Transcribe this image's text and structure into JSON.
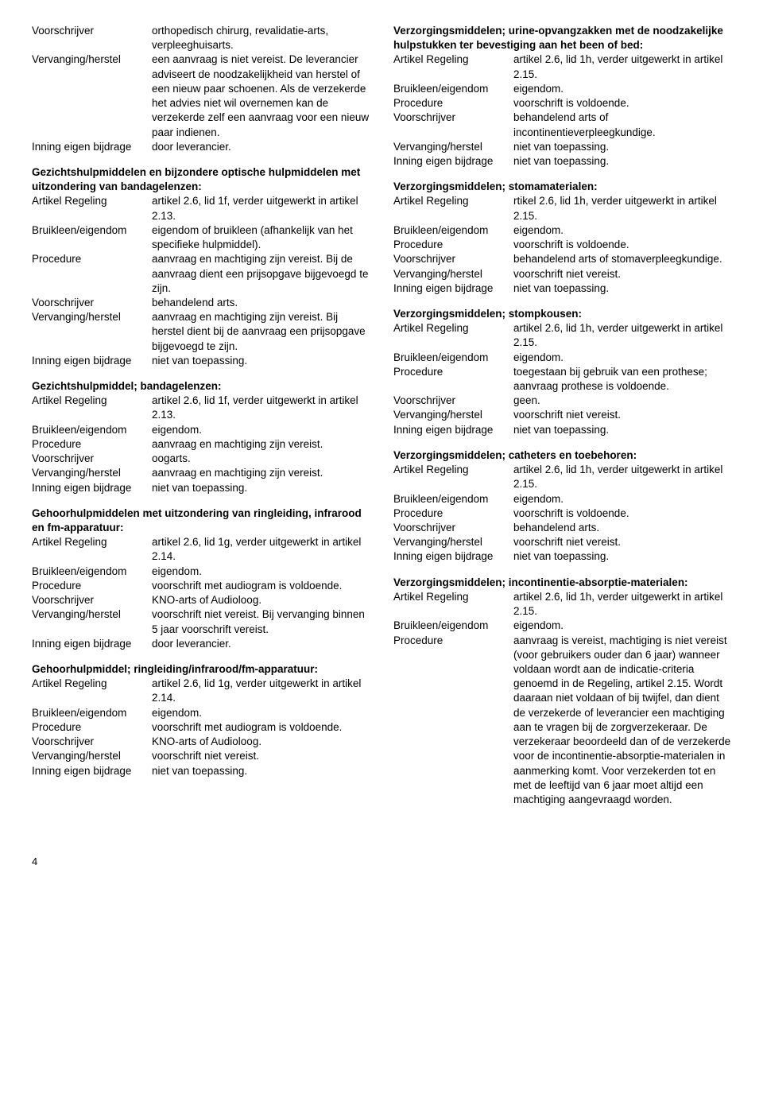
{
  "left": {
    "sec1": {
      "r1": {
        "l": "Voorschrijver",
        "v": "orthopedisch chirurg, revalidatie-arts, verpleeghuisarts."
      },
      "r2": {
        "l": "Vervanging/herstel",
        "v": "een aanvraag is niet vereist. De leverancier adviseert de noodzakelijkheid van herstel of een nieuw paar schoenen. Als de verzekerde het advies niet wil overnemen kan de verzekerde zelf een aanvraag voor een nieuw paar indienen."
      },
      "r3": {
        "l": "Inning eigen bijdrage",
        "v": "door leverancier."
      }
    },
    "sec2": {
      "title": "Gezichtshulpmiddelen en bijzondere optische hulpmiddelen met uitzondering van bandagelenzen:",
      "r1": {
        "l": "Artikel Regeling",
        "v": "artikel 2.6, lid 1f, verder uitgewerkt in artikel 2.13."
      },
      "r2": {
        "l": "Bruikleen/eigendom",
        "v": "eigendom of bruikleen (afhankelijk van het specifieke hulpmiddel)."
      },
      "r3": {
        "l": "Procedure",
        "v": "aanvraag en machtiging zijn vereist. Bij de aanvraag dient een prijsopgave bijgevoegd te zijn."
      },
      "r4": {
        "l": "Voorschrijver",
        "v": "behandelend arts."
      },
      "r5": {
        "l": "Vervanging/herstel",
        "v": "aanvraag en machtiging zijn vereist. Bij herstel dient bij de aanvraag een prijsopgave bijgevoegd te zijn."
      },
      "r6": {
        "l": "Inning eigen bijdrage",
        "v": "niet van toepassing."
      }
    },
    "sec3": {
      "title": "Gezichtshulpmiddel; bandagelenzen:",
      "r1": {
        "l": "Artikel Regeling",
        "v": "artikel 2.6, lid 1f, verder uitgewerkt in artikel 2.13."
      },
      "r2": {
        "l": "Bruikleen/eigendom",
        "v": "eigendom."
      },
      "r3": {
        "l": "Procedure",
        "v": "aanvraag en machtiging zijn vereist."
      },
      "r4": {
        "l": "Voorschrijver",
        "v": "oogarts."
      },
      "r5": {
        "l": "Vervanging/herstel",
        "v": "aanvraag en machtiging zijn vereist."
      },
      "r6": {
        "l": "Inning eigen bijdrage",
        "v": "niet van toepassing."
      }
    },
    "sec4": {
      "title": "Gehoorhulpmiddelen met uitzondering van ringleiding, infrarood en fm-apparatuur:",
      "r1": {
        "l": "Artikel Regeling",
        "v": "artikel 2.6, lid 1g, verder uitgewerkt in artikel 2.14."
      },
      "r2": {
        "l": "Bruikleen/eigendom",
        "v": "eigendom."
      },
      "r3": {
        "l": "Procedure",
        "v": "voorschrift met audiogram is voldoende."
      },
      "r4": {
        "l": "Voorschrijver",
        "v": "KNO-arts of Audioloog."
      },
      "r5": {
        "l": "Vervanging/herstel",
        "v": "voorschrift niet vereist. Bij vervanging binnen 5 jaar voorschrift vereist."
      },
      "r6": {
        "l": "Inning eigen bijdrage",
        "v": "door leverancier."
      }
    },
    "sec5": {
      "title": "Gehoorhulpmiddel; ringleiding/infrarood/fm-apparatuur:",
      "r1": {
        "l": "Artikel Regeling",
        "v": "artikel 2.6, lid 1g, verder uitgewerkt in artikel 2.14."
      },
      "r2": {
        "l": "Bruikleen/eigendom",
        "v": "eigendom."
      },
      "r3": {
        "l": "Procedure",
        "v": "voorschrift met audiogram is voldoende."
      },
      "r4": {
        "l": "Voorschrijver",
        "v": "KNO-arts of Audioloog."
      },
      "r5": {
        "l": "Vervanging/herstel",
        "v": "voorschrift niet vereist."
      },
      "r6": {
        "l": "Inning eigen bijdrage",
        "v": "niet van toepassing."
      }
    }
  },
  "right": {
    "sec1": {
      "title": "Verzorgingsmiddelen; urine-opvangzakken met de noodzakelijke hulpstukken ter bevestiging aan het been of bed:",
      "r1": {
        "l": "Artikel Regeling",
        "v": "artikel 2.6, lid 1h, verder uitgewerkt in artikel 2.15."
      },
      "r2": {
        "l": "Bruikleen/eigendom",
        "v": "eigendom."
      },
      "r3": {
        "l": "Procedure",
        "v": "voorschrift is voldoende."
      },
      "r4": {
        "l": "Voorschrijver",
        "v": "behandelend arts of incontinentieverpleegkundige."
      },
      "r5": {
        "l": "Vervanging/herstel",
        "v": "niet van toepassing."
      },
      "r6": {
        "l": "Inning eigen bijdrage",
        "v": "niet van toepassing."
      }
    },
    "sec2": {
      "title": "Verzorgingsmiddelen; stomamaterialen:",
      "r1": {
        "l": "Artikel Regeling",
        "v": "rtikel 2.6, lid 1h, verder uitgewerkt in artikel 2.15."
      },
      "r2": {
        "l": "Bruikleen/eigendom",
        "v": "eigendom."
      },
      "r3": {
        "l": "Procedure",
        "v": "voorschrift is voldoende."
      },
      "r4": {
        "l": "Voorschrijver",
        "v": "behandelend arts of stomaverpleegkundige."
      },
      "r5": {
        "l": "Vervanging/herstel",
        "v": "voorschrift niet vereist."
      },
      "r6": {
        "l": "Inning eigen bijdrage",
        "v": "niet van toepassing."
      }
    },
    "sec3": {
      "title": "Verzorgingsmiddelen; stompkousen:",
      "r1": {
        "l": "Artikel Regeling",
        "v": "artikel 2.6, lid 1h, verder uitgewerkt in artikel 2.15."
      },
      "r2": {
        "l": "Bruikleen/eigendom",
        "v": "eigendom."
      },
      "r3": {
        "l": "Procedure",
        "v": "toegestaan bij gebruik van een prothese; aanvraag prothese is voldoende."
      },
      "r4": {
        "l": "Voorschrijver",
        "v": "geen."
      },
      "r5": {
        "l": "Vervanging/herstel",
        "v": "voorschrift niet vereist."
      },
      "r6": {
        "l": "Inning eigen bijdrage",
        "v": "niet van toepassing."
      }
    },
    "sec4": {
      "title": "Verzorgingsmiddelen; catheters en toebehoren:",
      "r1": {
        "l": "Artikel Regeling",
        "v": "artikel 2.6, lid 1h, verder uitgewerkt in artikel 2.15."
      },
      "r2": {
        "l": "Bruikleen/eigendom",
        "v": "eigendom."
      },
      "r3": {
        "l": "Procedure",
        "v": "voorschrift is voldoende."
      },
      "r4": {
        "l": "Voorschrijver",
        "v": "behandelend arts."
      },
      "r5": {
        "l": "Vervanging/herstel",
        "v": "voorschrift niet vereist."
      },
      "r6": {
        "l": "Inning eigen bijdrage",
        "v": "niet van toepassing."
      }
    },
    "sec5": {
      "title": "Verzorgingsmiddelen; incontinentie-absorptie-materialen:",
      "r1": {
        "l": "Artikel Regeling",
        "v": "artikel 2.6, lid 1h, verder uitgewerkt in artikel 2.15."
      },
      "r2": {
        "l": "Bruikleen/eigendom",
        "v": "eigendom."
      },
      "r3": {
        "l": "Procedure",
        "v": "aanvraag is vereist, machtiging is niet vereist (voor gebruikers ouder dan 6 jaar) wanneer voldaan wordt aan de indicatie-criteria genoemd in de Regeling, artikel 2.15. Wordt daaraan niet voldaan of bij twijfel, dan dient de verzekerde of leverancier een machtiging aan te vragen bij de zorgverzekeraar. De verzekeraar beoordeeld dan of de verzekerde voor de incontinentie-absorptie-materialen in aanmerking komt. Voor verzekerden tot en met de leeftijd van 6 jaar moet altijd een machtiging aangevraagd worden."
      }
    }
  },
  "pagenum": "4"
}
